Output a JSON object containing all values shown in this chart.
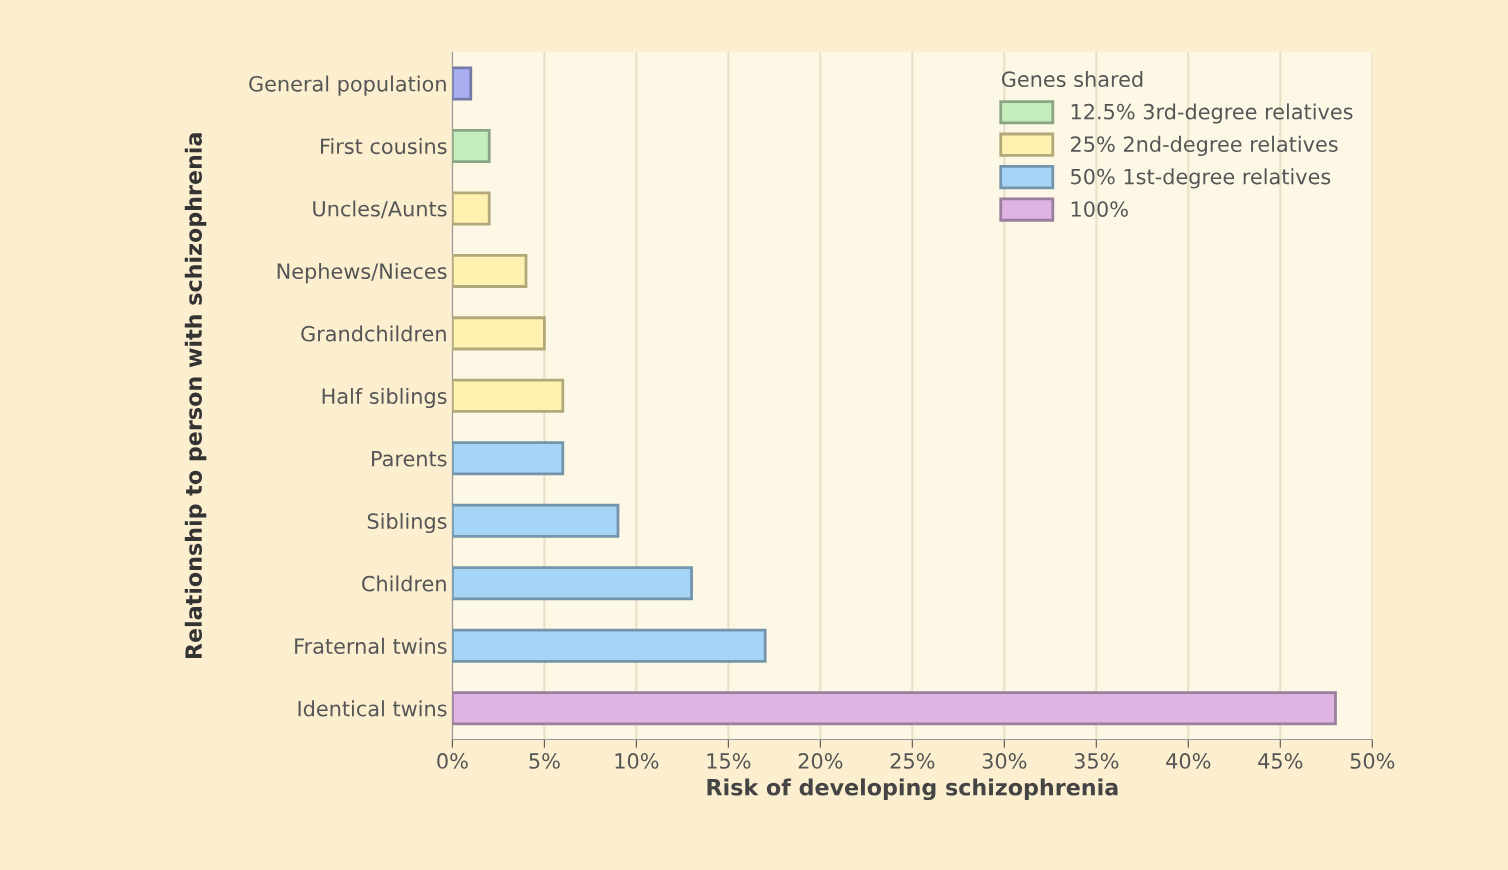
{
  "chart_data": {
    "type": "bar",
    "orientation": "horizontal",
    "xlabel": "Risk of developing schizophrenia",
    "ylabel": "Relationship to person with schizophrenia",
    "legend_title": "Genes shared",
    "legend": "top right",
    "grid": "x",
    "categories": [
      "General population",
      "First cousins",
      "Uncles/Aunts",
      "Nephews/Nieces",
      "Grandchildren",
      "Half siblings",
      "Parents",
      "Siblings",
      "Children",
      "Fraternal twins",
      "Identical twins"
    ],
    "xlim": [
      0,
      50
    ],
    "xticks": [
      {
        "value": 0,
        "label": "0%"
      },
      {
        "value": 5,
        "label": "5%"
      },
      {
        "value": 10,
        "label": "10%"
      },
      {
        "value": 15,
        "label": "15%"
      },
      {
        "value": 20,
        "label": "20%"
      },
      {
        "value": 25,
        "label": "25%"
      },
      {
        "value": 30,
        "label": "30%"
      },
      {
        "value": 35,
        "label": "35%"
      },
      {
        "value": 40,
        "label": "40%"
      },
      {
        "value": 45,
        "label": "45%"
      },
      {
        "value": 50,
        "label": "50%"
      }
    ],
    "series": [
      {
        "color": "#a8aef0",
        "values": [
          1,
          null,
          null,
          null,
          null,
          null,
          null,
          null,
          null,
          null,
          null
        ]
      },
      {
        "name": "12.5% 3rd-degree relatives",
        "color": "#c4ecbc",
        "values": [
          null,
          2,
          null,
          null,
          null,
          null,
          null,
          null,
          null,
          null,
          null
        ]
      },
      {
        "name": "25% 2nd-degree relatives",
        "color": "#fff1b0",
        "values": [
          null,
          null,
          2,
          4,
          5,
          6,
          null,
          null,
          null,
          null,
          null
        ]
      },
      {
        "name": "50% 1st-degree relatives",
        "color": "#a6d4f6",
        "values": [
          null,
          null,
          null,
          null,
          null,
          null,
          6,
          9,
          13,
          17,
          null
        ]
      },
      {
        "name": "100%",
        "color": "#deb4e2",
        "values": [
          null,
          null,
          null,
          null,
          null,
          null,
          null,
          null,
          null,
          null,
          48
        ]
      }
    ]
  }
}
